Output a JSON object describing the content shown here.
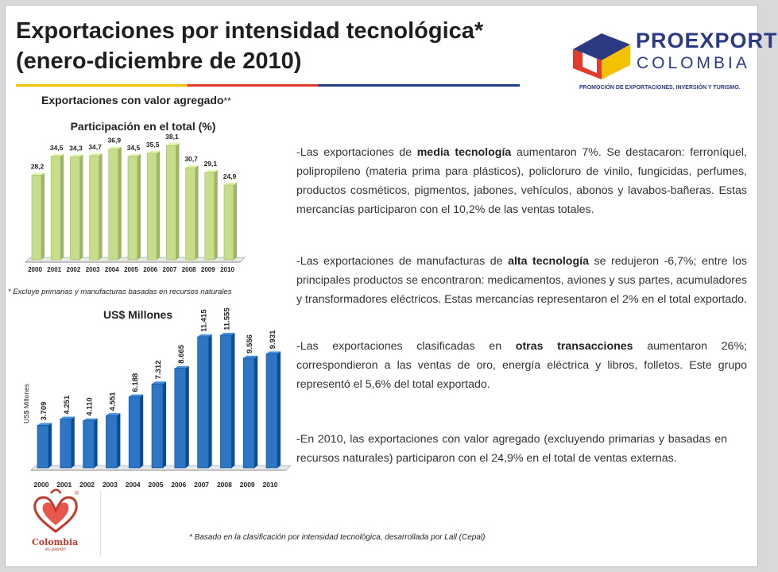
{
  "title_line1": "Exportaciones por intensidad tecnológica*",
  "title_line2": "(enero-diciembre de 2010)",
  "logo": {
    "brand_line1": "PROEXPORT",
    "brand_line2": "COLOMBIA",
    "tagline": "PROMOCIÓN DE EXPORTACIONES, INVERSIÓN Y TURISMO.",
    "colors": {
      "blue": "#2b3a82",
      "yellow": "#f2c200",
      "red": "#e23b2e"
    }
  },
  "chart1_heading": {
    "main": "Exportaciones con valor agregado",
    "sup": "**"
  },
  "chart1_footnote": "* Excluye primarias y manufacturas basadas en recursos naturales",
  "chart2_heading": "US$ Millones",
  "chart_data": [
    {
      "type": "bar",
      "title": "Participación en el total (%)",
      "categories": [
        "2000",
        "2001",
        "2002",
        "2003",
        "2004",
        "2005",
        "2006",
        "2007",
        "2008",
        "2009",
        "2010"
      ],
      "values": [
        28.2,
        34.5,
        34.3,
        34.7,
        36.9,
        34.5,
        35.5,
        38.1,
        30.7,
        29.1,
        24.9
      ],
      "value_labels": [
        "28,2",
        "34,5",
        "34,3",
        "34,7",
        "36,9",
        "34,5",
        "35,5",
        "38,1",
        "30,7",
        "29,1",
        "24,9"
      ],
      "ylim": [
        0,
        40
      ],
      "xlabel": "",
      "ylabel": "",
      "color": "#c6dd8c"
    },
    {
      "type": "bar",
      "title": "",
      "categories": [
        "2000",
        "2001",
        "2002",
        "2003",
        "2004",
        "2005",
        "2006",
        "2007",
        "2008",
        "2009",
        "2010"
      ],
      "values": [
        3709,
        4251,
        4110,
        4551,
        6188,
        7312,
        8665,
        11415,
        11555,
        9556,
        9931
      ],
      "value_labels": [
        "3.709",
        "4.251",
        "4.110",
        "4.551",
        "6.188",
        "7.312",
        "8.665",
        "11.415",
        "11.555",
        "9.556",
        "9.931"
      ],
      "ylim": [
        0,
        13000
      ],
      "xlabel": "",
      "ylabel": "US$ Millones",
      "color": "#2e75c4"
    }
  ],
  "paragraphs": {
    "p1_pre": "-Las exportaciones de",
    "p1_bold": "media tecnología",
    "p1_post": "aumentaron 7%. Se destacaron: ferroníquel, polipropileno (materia prima para plásticos), policloruro de vinilo, fungicidas, perfumes, productos cosméticos, pigmentos, jabones, vehículos, abonos y lavabos-bañeras. Estas mercancías participaron con el 10,2% de las ventas totales.",
    "p2_pre": "-Las exportaciones de manufacturas de",
    "p2_bold": "alta tecnología",
    "p2_post": "se redujeron -6,7%; entre los principales productos se encontraron: medicamentos, aviones y sus partes, acumuladores y transformadores eléctricos. Estas mercancías representaron el 2% en el total exportado.",
    "p3_pre": "-Las exportaciones clasificadas en",
    "p3_bold": "otras transacciones",
    "p3_post": "aumentaron 26%; correspondieron a las ventas de oro, energía eléctrica y libros, folletos. Este grupo representó el 5,6% del total exportado.",
    "p4": "-En 2010, las exportaciones con valor agregado (excluyendo primarias y basadas en recursos naturales) participaron con el 24,9% en el total de ventas externas."
  },
  "bottom_footnote": "* Basado en la clasificación  por intensidad tecnológica, desarrollada por Lall (Cepal)",
  "colombia_logo": {
    "word": "Colombia",
    "tagline": "es pasión",
    "registered": "®"
  }
}
